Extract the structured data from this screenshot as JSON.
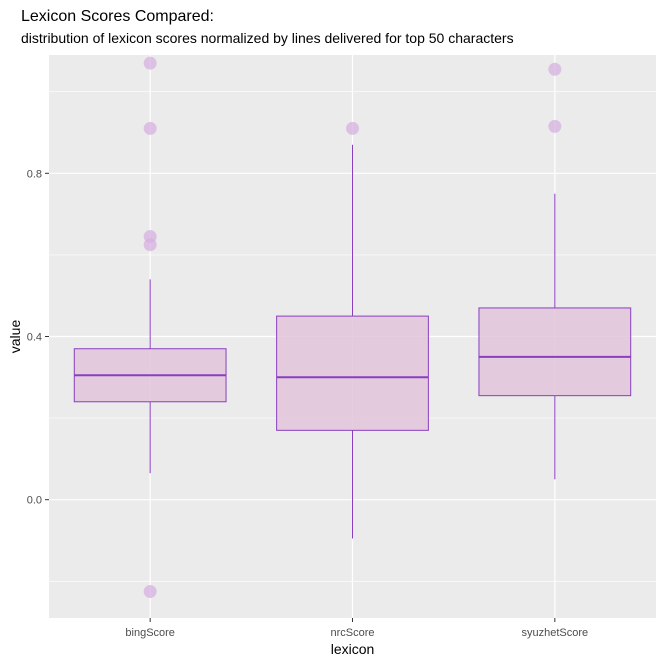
{
  "chart_data": {
    "type": "boxplot",
    "title": "Lexicon Scores Compared:",
    "subtitle": "distribution of lexicon scores normalized by lines delivered for top 50 characters",
    "xlabel": "lexicon",
    "ylabel": "value",
    "ylim": [
      -0.29,
      1.09
    ],
    "yticks": [
      0.0,
      0.4,
      0.8
    ],
    "ytick_labels": [
      "0.0",
      "0.4",
      "0.8"
    ],
    "grid": true,
    "categories": [
      "bingScore",
      "nrcScore",
      "syuzhetScore"
    ],
    "boxes": [
      {
        "category": "bingScore",
        "whisker_low": 0.065,
        "q1": 0.24,
        "median": 0.305,
        "q3": 0.37,
        "whisker_high": 0.54,
        "outliers": [
          -0.225,
          0.625,
          0.645,
          0.91,
          1.07
        ]
      },
      {
        "category": "nrcScore",
        "whisker_low": -0.095,
        "q1": 0.17,
        "median": 0.3,
        "q3": 0.45,
        "whisker_high": 0.87,
        "outliers": [
          0.91
        ]
      },
      {
        "category": "syuzhetScore",
        "whisker_low": 0.05,
        "q1": 0.255,
        "median": 0.35,
        "q3": 0.47,
        "whisker_high": 0.75,
        "outliers": [
          0.915,
          1.055
        ]
      }
    ],
    "colors": {
      "box_fill": "#e2c4db",
      "box_stroke": "#8a3fbf",
      "outlier_fill": "#d7b2e0",
      "panel_bg": "#ebebeb",
      "grid": "#ffffff"
    }
  }
}
